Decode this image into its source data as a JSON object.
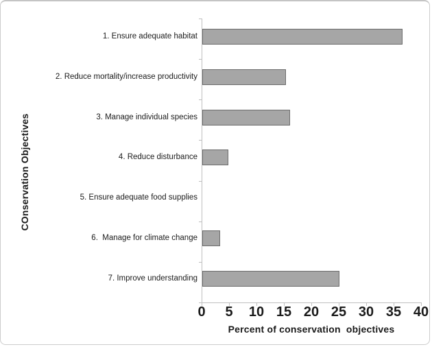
{
  "chart_data": {
    "type": "bar",
    "orientation": "horizontal",
    "title": "",
    "categories": [
      "1. Ensure adequate habitat",
      "2. Reduce mortality/increase productivity",
      "3. Manage individual species",
      "4. Reduce disturbance",
      "5. Ensure adequate food supplies",
      "6.  Manage for climate change",
      "7. Improve understanding"
    ],
    "values": [
      36.5,
      15.2,
      16,
      4.7,
      0,
      3.3,
      25
    ],
    "xlabel": "Percent of conservation  objectives",
    "ylabel": "COnservation Objectives",
    "xlim": [
      0,
      40
    ],
    "xticks": [
      0,
      5,
      10,
      15,
      20,
      25,
      30,
      35,
      40
    ],
    "grid": false,
    "legend": null,
    "bar_fill": "#a6a6a6",
    "bar_border": "#6b6b6b",
    "axis_color": "#bfbfbf",
    "text_color": "#1a1a1a"
  }
}
